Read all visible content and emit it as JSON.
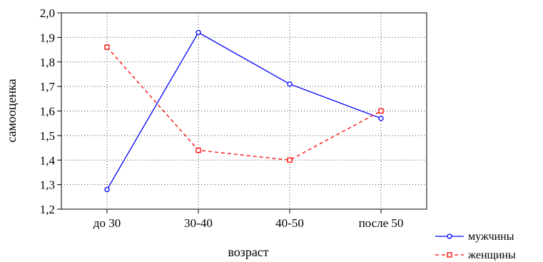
{
  "chart_data": {
    "type": "line",
    "categories": [
      "до 30",
      "30-40",
      "40-50",
      "после 50"
    ],
    "series": [
      {
        "name": "мужчины",
        "values": [
          1.28,
          1.92,
          1.71,
          1.57
        ],
        "color": "#0000ff",
        "line_style": "solid",
        "marker": "circle"
      },
      {
        "name": "женщины",
        "values": [
          1.86,
          1.44,
          1.4,
          1.6
        ],
        "color": "#ff0000",
        "line_style": "dashed",
        "marker": "square"
      }
    ],
    "xlabel": "возраст",
    "ylabel": "самооценка",
    "ylim": [
      1.2,
      2.0
    ],
    "yticks": [
      "1,2",
      "1,3",
      "1,4",
      "1,5",
      "1,6",
      "1,7",
      "1,8",
      "1,9",
      "2,0"
    ],
    "grid": true,
    "legend_position": "bottom-right"
  }
}
